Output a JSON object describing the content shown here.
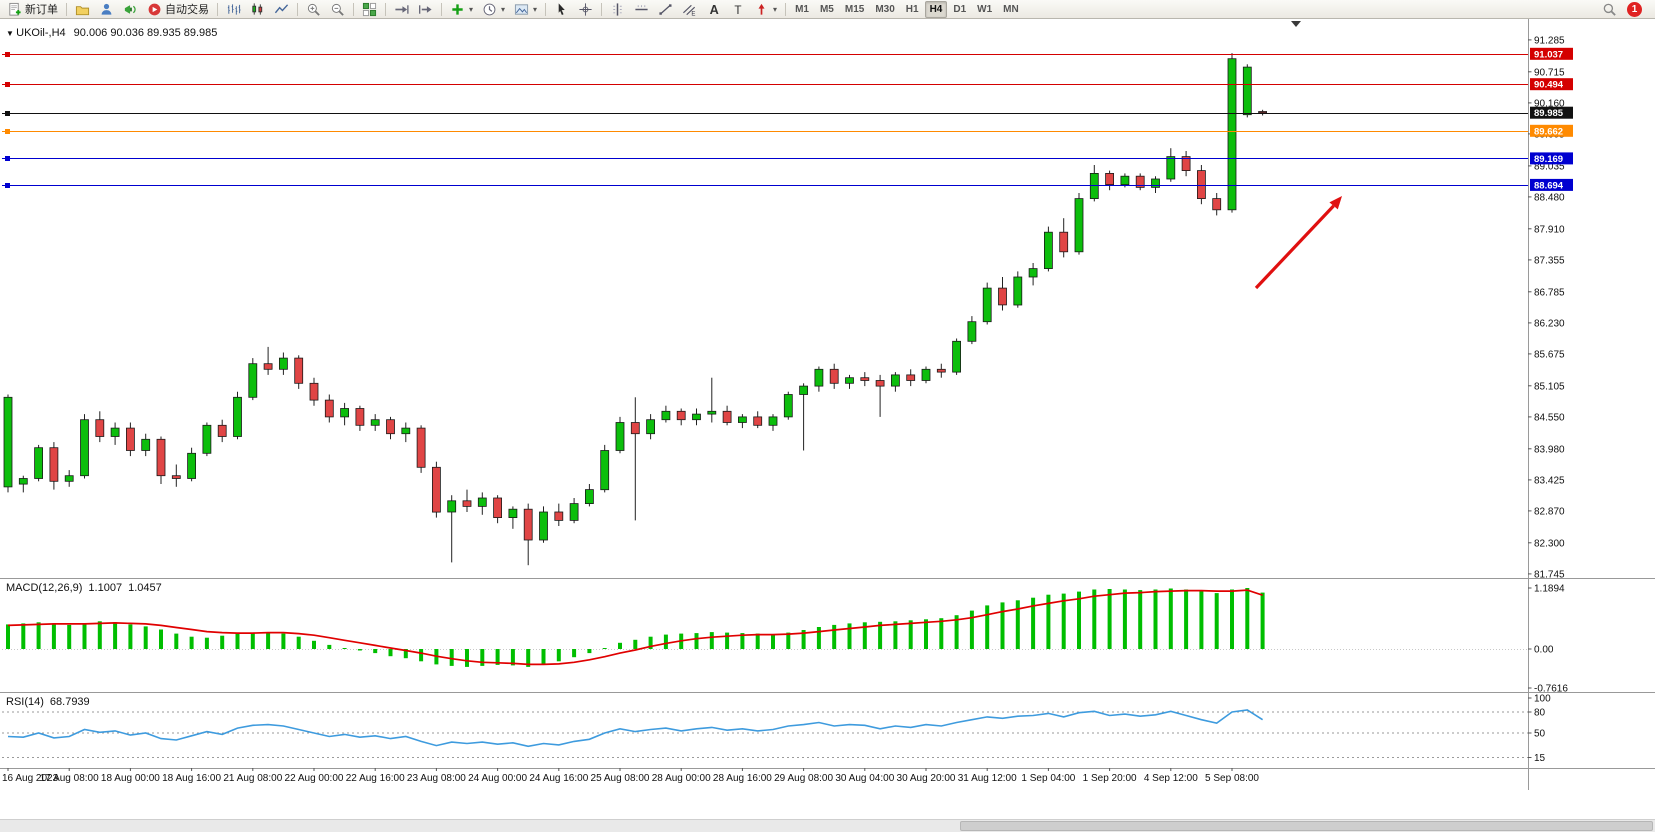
{
  "toolbar": {
    "active_timeframe": "H4",
    "notification_badge": "1",
    "groups": [
      {
        "items": [
          {
            "name": "new-order",
            "icon": "doc-plus",
            "label": "新订单"
          }
        ]
      },
      {
        "items": [
          {
            "name": "new-chart",
            "icon": "folder"
          },
          {
            "name": "profiles",
            "icon": "user"
          },
          {
            "name": "alerts",
            "icon": "megaphone"
          },
          {
            "name": "autotrading",
            "icon": "play-red",
            "label": "自动交易"
          }
        ]
      },
      {
        "items": [
          {
            "name": "bar-chart-mode",
            "icon": "bars"
          },
          {
            "name": "candle-chart-mode",
            "icon": "candles"
          },
          {
            "name": "line-chart-mode",
            "icon": "linechart"
          }
        ]
      },
      {
        "items": [
          {
            "name": "zoom-in",
            "icon": "zoom-in"
          },
          {
            "name": "zoom-out",
            "icon": "zoom-out"
          }
        ]
      },
      {
        "items": [
          {
            "name": "tile-windows",
            "icon": "tile"
          }
        ]
      },
      {
        "items": [
          {
            "name": "auto-scroll",
            "icon": "autoscroll"
          },
          {
            "name": "chart-shift",
            "icon": "shift"
          }
        ]
      },
      {
        "items": [
          {
            "name": "indicators",
            "icon": "ind-plus",
            "dropdown": true
          },
          {
            "name": "periods",
            "icon": "clock",
            "dropdown": true
          },
          {
            "name": "templates",
            "icon": "template",
            "dropdown": true
          }
        ]
      },
      {
        "items": [
          {
            "name": "cursor",
            "icon": "cursor"
          },
          {
            "name": "crosshair",
            "icon": "crosshair"
          }
        ]
      },
      {
        "items": [
          {
            "name": "vertical-line",
            "icon": "vline"
          },
          {
            "name": "horizontal-line",
            "icon": "hline"
          },
          {
            "name": "trendline",
            "icon": "trend"
          },
          {
            "name": "equidistant-channel",
            "icon": "equi"
          },
          {
            "name": "text",
            "icon": "text-a"
          },
          {
            "name": "text-label",
            "icon": "label-t"
          },
          {
            "name": "arrows",
            "icon": "arrow-obj",
            "dropdown": true
          }
        ]
      },
      {
        "items": [
          {
            "type": "tf",
            "name": "timeframe-m1",
            "label": "M1"
          },
          {
            "type": "tf",
            "name": "timeframe-m5",
            "label": "M5"
          },
          {
            "type": "tf",
            "name": "timeframe-m15",
            "label": "M15"
          },
          {
            "type": "tf",
            "name": "timeframe-m30",
            "label": "M30"
          },
          {
            "type": "tf",
            "name": "timeframe-h1",
            "label": "H1"
          },
          {
            "type": "tf",
            "name": "timeframe-h4",
            "label": "H4"
          },
          {
            "type": "tf",
            "name": "timeframe-d1",
            "label": "D1"
          },
          {
            "type": "tf",
            "name": "timeframe-w1",
            "label": "W1"
          },
          {
            "type": "tf",
            "name": "timeframe-mn",
            "label": "MN"
          }
        ]
      }
    ],
    "right_items": [
      {
        "name": "search",
        "icon": "search"
      }
    ]
  },
  "chart": {
    "symbol_label": "UKOil-,H4",
    "ohlc_label": "90.006 90.036 89.935 89.985",
    "price_axis": [
      "91.285",
      "90.715",
      "90.160",
      "89.605",
      "89.035",
      "88.480",
      "87.910",
      "87.355",
      "86.785",
      "86.230",
      "85.675",
      "85.105",
      "84.550",
      "83.980",
      "83.425",
      "82.870",
      "82.300",
      "81.745"
    ],
    "hlines": [
      {
        "price": 91.037,
        "label": "91.037",
        "color": "#D40000"
      },
      {
        "price": 90.494,
        "label": "90.494",
        "color": "#D40000"
      },
      {
        "price": 89.985,
        "label": "89.985",
        "color": "#111111",
        "current": true
      },
      {
        "price": 89.662,
        "label": "89.662",
        "color": "#FF8A00"
      },
      {
        "price": 89.169,
        "label": "89.169",
        "color": "#0000D0"
      },
      {
        "price": 88.694,
        "label": "88.694",
        "color": "#0000D0"
      }
    ],
    "time_axis": [
      "16 Aug 2023",
      "17 Aug 08:00",
      "18 Aug 00:00",
      "18 Aug 16:00",
      "21 Aug 08:00",
      "22 Aug 00:00",
      "22 Aug 16:00",
      "23 Aug 08:00",
      "24 Aug 00:00",
      "24 Aug 16:00",
      "25 Aug 08:00",
      "28 Aug 00:00",
      "28 Aug 16:00",
      "29 Aug 08:00",
      "30 Aug 04:00",
      "30 Aug 20:00",
      "31 Aug 12:00",
      "1 Sep 04:00",
      "1 Sep 20:00",
      "4 Sep 12:00",
      "5 Sep 08:00"
    ],
    "colors": {
      "up": "#0CBE0C",
      "down": "#E04545",
      "wick": "#222222",
      "axis_text": "#111111",
      "background": "#FFFFFF",
      "macd_histogram": "#00BE00",
      "macd_signal": "#E00000",
      "rsi_line": "#3E9BDE",
      "arrow": "#E01010"
    }
  },
  "chart_data": {
    "type": "candlestick",
    "symbol": "UKOil-",
    "timeframe": "H4",
    "current_bar": {
      "open": 90.006,
      "high": 90.036,
      "low": 89.935,
      "close": 89.985
    },
    "price_axis_range": [
      81.6,
      91.48
    ],
    "candles": [
      [
        83.3,
        84.95,
        83.2,
        84.9
      ],
      [
        83.35,
        83.5,
        83.2,
        83.45
      ],
      [
        83.45,
        84.05,
        83.4,
        84.0
      ],
      [
        84.0,
        84.1,
        83.25,
        83.4
      ],
      [
        83.4,
        83.6,
        83.3,
        83.5
      ],
      [
        83.5,
        84.6,
        83.45,
        84.5
      ],
      [
        84.5,
        84.65,
        84.1,
        84.2
      ],
      [
        84.2,
        84.45,
        84.05,
        84.35
      ],
      [
        84.35,
        84.45,
        83.85,
        83.95
      ],
      [
        83.95,
        84.25,
        83.85,
        84.15
      ],
      [
        84.15,
        84.2,
        83.35,
        83.5
      ],
      [
        83.5,
        83.7,
        83.3,
        83.45
      ],
      [
        83.45,
        84.0,
        83.4,
        83.9
      ],
      [
        83.9,
        84.45,
        83.85,
        84.4
      ],
      [
        84.4,
        84.5,
        84.1,
        84.2
      ],
      [
        84.2,
        85.0,
        84.15,
        84.9
      ],
      [
        84.9,
        85.6,
        84.85,
        85.5
      ],
      [
        85.5,
        85.8,
        85.3,
        85.4
      ],
      [
        85.4,
        85.7,
        85.3,
        85.6
      ],
      [
        85.6,
        85.65,
        85.05,
        85.15
      ],
      [
        85.15,
        85.25,
        84.75,
        84.85
      ],
      [
        84.85,
        84.95,
        84.45,
        84.55
      ],
      [
        84.55,
        84.8,
        84.4,
        84.7
      ],
      [
        84.7,
        84.75,
        84.3,
        84.4
      ],
      [
        84.4,
        84.6,
        84.3,
        84.5
      ],
      [
        84.5,
        84.55,
        84.15,
        84.25
      ],
      [
        84.25,
        84.45,
        84.1,
        84.35
      ],
      [
        84.35,
        84.4,
        83.55,
        83.65
      ],
      [
        83.65,
        83.75,
        82.75,
        82.85
      ],
      [
        82.85,
        83.15,
        81.95,
        83.05
      ],
      [
        83.05,
        83.25,
        82.85,
        82.95
      ],
      [
        82.95,
        83.2,
        82.8,
        83.1
      ],
      [
        83.1,
        83.15,
        82.65,
        82.75
      ],
      [
        82.75,
        82.95,
        82.55,
        82.9
      ],
      [
        82.9,
        83.0,
        81.9,
        82.35
      ],
      [
        82.35,
        82.95,
        82.3,
        82.85
      ],
      [
        82.85,
        83.0,
        82.6,
        82.7
      ],
      [
        82.7,
        83.1,
        82.65,
        83.0
      ],
      [
        83.0,
        83.35,
        82.95,
        83.25
      ],
      [
        83.25,
        84.05,
        83.2,
        83.95
      ],
      [
        83.95,
        84.55,
        83.9,
        84.45
      ],
      [
        84.45,
        84.9,
        82.7,
        84.25
      ],
      [
        84.25,
        84.6,
        84.15,
        84.5
      ],
      [
        84.5,
        84.75,
        84.45,
        84.65
      ],
      [
        84.65,
        84.7,
        84.4,
        84.5
      ],
      [
        84.5,
        84.7,
        84.4,
        84.6
      ],
      [
        84.6,
        85.25,
        84.45,
        84.65
      ],
      [
        84.65,
        84.75,
        84.4,
        84.45
      ],
      [
        84.45,
        84.6,
        84.35,
        84.55
      ],
      [
        84.55,
        84.65,
        84.35,
        84.4
      ],
      [
        84.4,
        84.6,
        84.3,
        84.55
      ],
      [
        84.55,
        85.0,
        84.5,
        84.95
      ],
      [
        84.95,
        85.15,
        83.95,
        85.1
      ],
      [
        85.1,
        85.45,
        85.0,
        85.4
      ],
      [
        85.4,
        85.5,
        85.05,
        85.15
      ],
      [
        85.15,
        85.3,
        85.05,
        85.25
      ],
      [
        85.25,
        85.35,
        85.1,
        85.2
      ],
      [
        85.2,
        85.3,
        84.55,
        85.1
      ],
      [
        85.1,
        85.35,
        85.0,
        85.3
      ],
      [
        85.3,
        85.4,
        85.1,
        85.2
      ],
      [
        85.2,
        85.45,
        85.15,
        85.4
      ],
      [
        85.4,
        85.5,
        85.25,
        85.35
      ],
      [
        85.35,
        85.95,
        85.3,
        85.9
      ],
      [
        85.9,
        86.35,
        85.85,
        86.25
      ],
      [
        86.25,
        86.95,
        86.2,
        86.85
      ],
      [
        86.85,
        87.05,
        86.45,
        86.55
      ],
      [
        86.55,
        87.15,
        86.5,
        87.05
      ],
      [
        87.05,
        87.3,
        86.9,
        87.2
      ],
      [
        87.2,
        87.95,
        87.15,
        87.85
      ],
      [
        87.85,
        88.1,
        87.4,
        87.5
      ],
      [
        87.5,
        88.55,
        87.45,
        88.45
      ],
      [
        88.45,
        89.05,
        88.4,
        88.9
      ],
      [
        88.9,
        88.95,
        88.6,
        88.7
      ],
      [
        88.7,
        88.9,
        88.65,
        88.85
      ],
      [
        88.85,
        88.9,
        88.6,
        88.65
      ],
      [
        88.65,
        88.85,
        88.55,
        88.8
      ],
      [
        88.8,
        89.35,
        88.75,
        89.2
      ],
      [
        89.2,
        89.3,
        88.85,
        88.95
      ],
      [
        88.95,
        89.05,
        88.35,
        88.45
      ],
      [
        88.45,
        88.55,
        88.15,
        88.25
      ],
      [
        88.25,
        91.05,
        88.2,
        90.95
      ],
      [
        89.95,
        90.85,
        89.9,
        90.8
      ],
      [
        90.006,
        90.036,
        89.935,
        89.985
      ]
    ],
    "macd": {
      "label": "MACD(12,26,9)",
      "main_value": "1.1007",
      "signal_value": "1.0457",
      "scale_labels": [
        "1.1894",
        "0.00",
        "-0.7616"
      ],
      "histogram": [
        0.48,
        0.5,
        0.52,
        0.5,
        0.47,
        0.5,
        0.54,
        0.52,
        0.48,
        0.44,
        0.38,
        0.3,
        0.24,
        0.22,
        0.26,
        0.3,
        0.32,
        0.33,
        0.3,
        0.24,
        0.16,
        0.08,
        0.02,
        -0.03,
        -0.08,
        -0.14,
        -0.18,
        -0.24,
        -0.3,
        -0.33,
        -0.35,
        -0.33,
        -0.31,
        -0.32,
        -0.35,
        -0.3,
        -0.24,
        -0.16,
        -0.08,
        0.02,
        0.12,
        0.18,
        0.24,
        0.28,
        0.3,
        0.31,
        0.33,
        0.32,
        0.31,
        0.3,
        0.29,
        0.32,
        0.37,
        0.43,
        0.47,
        0.5,
        0.52,
        0.53,
        0.54,
        0.56,
        0.58,
        0.6,
        0.66,
        0.75,
        0.85,
        0.91,
        0.95,
        1.0,
        1.06,
        1.08,
        1.12,
        1.16,
        1.17,
        1.16,
        1.15,
        1.16,
        1.18,
        1.16,
        1.13,
        1.09,
        1.16,
        1.19,
        1.1
      ],
      "signal": [
        0.46,
        0.47,
        0.48,
        0.49,
        0.49,
        0.49,
        0.5,
        0.51,
        0.5,
        0.49,
        0.46,
        0.42,
        0.38,
        0.34,
        0.32,
        0.31,
        0.31,
        0.32,
        0.32,
        0.3,
        0.27,
        0.22,
        0.17,
        0.12,
        0.07,
        0.02,
        -0.03,
        -0.08,
        -0.14,
        -0.19,
        -0.23,
        -0.26,
        -0.27,
        -0.28,
        -0.3,
        -0.3,
        -0.29,
        -0.26,
        -0.21,
        -0.15,
        -0.08,
        -0.02,
        0.05,
        0.11,
        0.16,
        0.2,
        0.23,
        0.25,
        0.27,
        0.28,
        0.28,
        0.29,
        0.31,
        0.34,
        0.37,
        0.4,
        0.43,
        0.46,
        0.48,
        0.5,
        0.52,
        0.54,
        0.57,
        0.61,
        0.67,
        0.73,
        0.78,
        0.84,
        0.89,
        0.94,
        0.98,
        1.03,
        1.06,
        1.09,
        1.1,
        1.12,
        1.13,
        1.14,
        1.14,
        1.13,
        1.13,
        1.15,
        1.05
      ]
    },
    "rsi": {
      "label": "RSI(14)",
      "value": "68.7939",
      "scale_labels": [
        "100",
        "80",
        "50",
        "15"
      ],
      "levels": [
        80,
        50,
        15
      ],
      "values": [
        45,
        44,
        50,
        43,
        45,
        55,
        51,
        53,
        47,
        50,
        42,
        40,
        46,
        52,
        48,
        57,
        61,
        62,
        60,
        55,
        50,
        45,
        48,
        44,
        46,
        42,
        45,
        38,
        32,
        37,
        35,
        37,
        34,
        36,
        31,
        35,
        33,
        38,
        41,
        50,
        56,
        52,
        55,
        57,
        53,
        56,
        58,
        54,
        56,
        53,
        55,
        60,
        62,
        65,
        60,
        62,
        61,
        56,
        60,
        58,
        62,
        60,
        65,
        69,
        73,
        71,
        74,
        75,
        78,
        73,
        79,
        81,
        75,
        77,
        74,
        76,
        81,
        75,
        69,
        64,
        80,
        83,
        69
      ]
    }
  },
  "annotations": {
    "arrow": {
      "type": "trend-arrow",
      "direction": "up-right",
      "color": "#E01010"
    }
  }
}
